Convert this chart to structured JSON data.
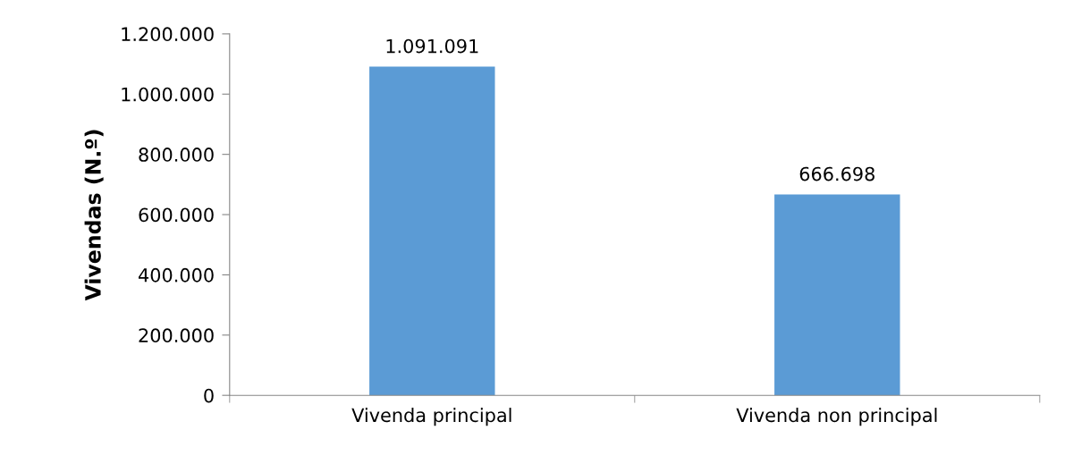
{
  "chart_data": {
    "type": "bar",
    "ylabel": "Vivendas (N.º)",
    "categories": [
      "Vivenda principal",
      "Vivenda non principal"
    ],
    "values": [
      1091091,
      666698
    ],
    "color": "#5b9bd5",
    "value_labels": [
      "1.091.091",
      "666.698"
    ],
    "ylim": [
      0,
      1200000
    ],
    "yticks": [
      {
        "value": 0,
        "label": "0"
      },
      {
        "value": 200000,
        "label": "200.000"
      },
      {
        "value": 400000,
        "label": "400.000"
      },
      {
        "value": 600000,
        "label": "600.000"
      },
      {
        "value": 800000,
        "label": "800.000"
      },
      {
        "value": 1000000,
        "label": "1.000.000"
      },
      {
        "value": 1200000,
        "label": "1.200.000"
      }
    ],
    "grid": false,
    "legend": false
  }
}
